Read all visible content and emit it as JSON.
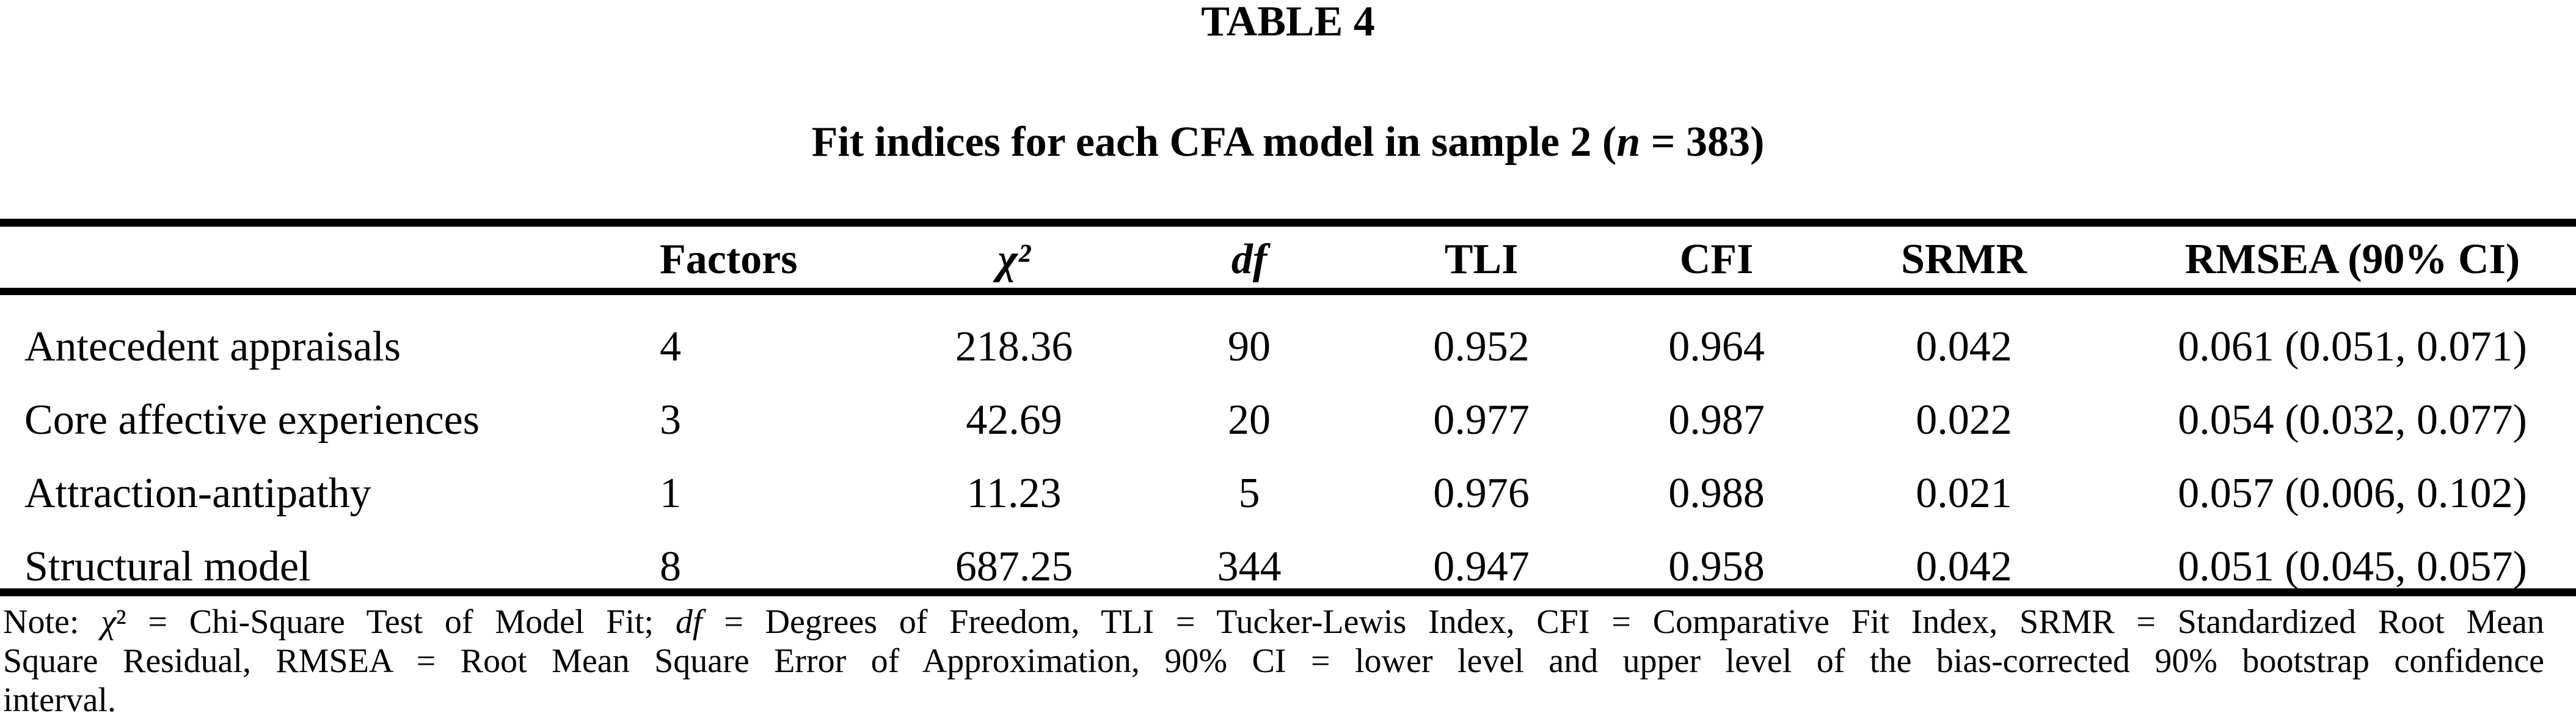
{
  "title": "TABLE 4",
  "subtitle": [
    {
      "t": "Fit indices for each CFA model in sample 2 ("
    },
    {
      "t": "n",
      "i": 1
    },
    {
      "t": " = 383)"
    }
  ],
  "table": {
    "columns": [
      "",
      "Factors",
      "χ²",
      "df",
      "TLI",
      "CFI",
      "SRMR",
      "RMSEA (90% CI)"
    ],
    "rows": [
      {
        "model": "Antecedent appraisals",
        "factors": "4",
        "chi_square": "218.36",
        "df": "90",
        "tli": "0.952",
        "cfi": "0.964",
        "srmr": "0.042",
        "rmsea": "0.061 (0.051, 0.071)"
      },
      {
        "model": "Core affective experiences",
        "factors": "3",
        "chi_square": "42.69",
        "df": "20",
        "tli": "0.977",
        "cfi": "0.987",
        "srmr": "0.022",
        "rmsea": "0.054 (0.032, 0.077)"
      },
      {
        "model": "Attraction-antipathy",
        "factors": "1",
        "chi_square": "11.23",
        "df": "5",
        "tli": "0.976",
        "cfi": "0.988",
        "srmr": "0.021",
        "rmsea": "0.057 (0.006, 0.102)"
      },
      {
        "model": "Structural model",
        "factors": "8",
        "chi_square": "687.25",
        "df": "344",
        "tli": "0.947",
        "cfi": "0.958",
        "srmr": "0.042",
        "rmsea": "0.051 (0.045, 0.057)"
      }
    ]
  },
  "note": {
    "lines": [
      [
        {
          "t": "Note: "
        },
        {
          "t": "χ",
          "i": 1
        },
        {
          "t": "²"
        },
        {
          "t": " = Chi-Square Test of Model Fit; "
        },
        {
          "t": "df",
          "i": 1
        },
        {
          "t": " = Degrees of Freedom, TLI = Tucker-Lewis Index, CFI = Comparative Fit Index, SRMR = Standardized Root Mean"
        }
      ],
      [
        {
          "t": "Square Residual, RMSEA = Root Mean Square Error of Approximation, 90% CI = lower level and upper level of the bias-corrected 90% bootstrap confidence"
        }
      ],
      [
        {
          "t": "interval."
        }
      ]
    ]
  }
}
